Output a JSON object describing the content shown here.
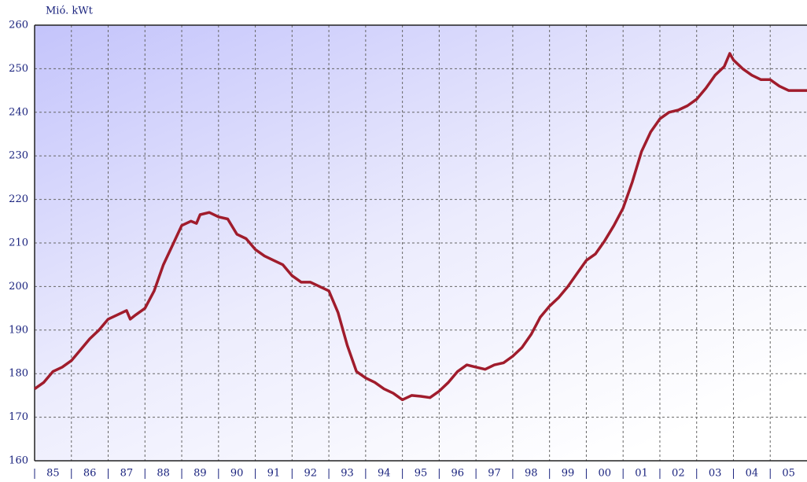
{
  "chart_data": {
    "type": "line",
    "y_axis_label": "Mió. kWt",
    "xlim": [
      1985,
      2006
    ],
    "xticks": [
      {
        "value": 1985.5,
        "label": "85"
      },
      {
        "value": 1986.5,
        "label": "86"
      },
      {
        "value": 1987.5,
        "label": "87"
      },
      {
        "value": 1988.5,
        "label": "88"
      },
      {
        "value": 1989.5,
        "label": "89"
      },
      {
        "value": 1990.5,
        "label": "90"
      },
      {
        "value": 1991.5,
        "label": "91"
      },
      {
        "value": 1992.5,
        "label": "92"
      },
      {
        "value": 1993.5,
        "label": "93"
      },
      {
        "value": 1994.5,
        "label": "94"
      },
      {
        "value": 1995.5,
        "label": "95"
      },
      {
        "value": 1996.5,
        "label": "96"
      },
      {
        "value": 1997.5,
        "label": "97"
      },
      {
        "value": 1998.5,
        "label": "98"
      },
      {
        "value": 1999.5,
        "label": "99"
      },
      {
        "value": 2000.5,
        "label": "00"
      },
      {
        "value": 2001.5,
        "label": "01"
      },
      {
        "value": 2002.5,
        "label": "02"
      },
      {
        "value": 2003.5,
        "label": "03"
      },
      {
        "value": 2004.5,
        "label": "04"
      },
      {
        "value": 2005.5,
        "label": "05"
      }
    ],
    "ylim": [
      160,
      260
    ],
    "yticks": [
      160,
      170,
      180,
      190,
      200,
      210,
      220,
      230,
      240,
      250,
      260
    ],
    "grid": true,
    "x": [
      1985,
      1985.25,
      1985.5,
      1985.75,
      1986,
      1986.25,
      1986.5,
      1986.75,
      1987,
      1987.25,
      1987.5,
      1987.6,
      1987.75,
      1988,
      1988.25,
      1988.5,
      1988.75,
      1989,
      1989.25,
      1989.4,
      1989.5,
      1989.75,
      1990,
      1990.25,
      1990.5,
      1990.75,
      1991,
      1991.25,
      1991.5,
      1991.75,
      1992,
      1992.25,
      1992.5,
      1992.75,
      1993,
      1993.25,
      1993.5,
      1993.75,
      1994,
      1994.25,
      1994.5,
      1994.75,
      1995,
      1995.25,
      1995.5,
      1995.75,
      1996,
      1996.25,
      1996.5,
      1996.75,
      1997,
      1997.25,
      1997.5,
      1997.75,
      1998,
      1998.25,
      1998.5,
      1998.75,
      1999,
      1999.25,
      1999.5,
      1999.75,
      2000,
      2000.25,
      2000.5,
      2000.75,
      2001,
      2001.25,
      2001.5,
      2001.75,
      2002,
      2002.25,
      2002.5,
      2002.75,
      2003,
      2003.25,
      2003.5,
      2003.75,
      2003.9,
      2004,
      2004.25,
      2004.5,
      2004.75,
      2005,
      2005.25,
      2005.5,
      2006
    ],
    "series": [
      {
        "color": "#a01c2c",
        "values": [
          176.5,
          178,
          180.5,
          181.5,
          183,
          185.5,
          188,
          190,
          192.5,
          193.5,
          194.5,
          192.5,
          193.5,
          195,
          199,
          205,
          209.5,
          214,
          215,
          214.5,
          216.5,
          217,
          216,
          215.5,
          212,
          211,
          208.5,
          207,
          206,
          205,
          202.5,
          201,
          201,
          200,
          199,
          194,
          186.5,
          180.5,
          179,
          178,
          176.5,
          175.5,
          174,
          175,
          174.8,
          174.5,
          176,
          178,
          180.5,
          182,
          181.5,
          181,
          182,
          182.5,
          184,
          186,
          189,
          193,
          195.5,
          197.5,
          200,
          203,
          206,
          207.5,
          210.5,
          214,
          218,
          224,
          231,
          235.5,
          238.5,
          240,
          240.5,
          241.5,
          243,
          245.5,
          248.5,
          250.5,
          253.5,
          252,
          250,
          248.5,
          247.5,
          247.5,
          246,
          245,
          245
        ]
      }
    ]
  }
}
